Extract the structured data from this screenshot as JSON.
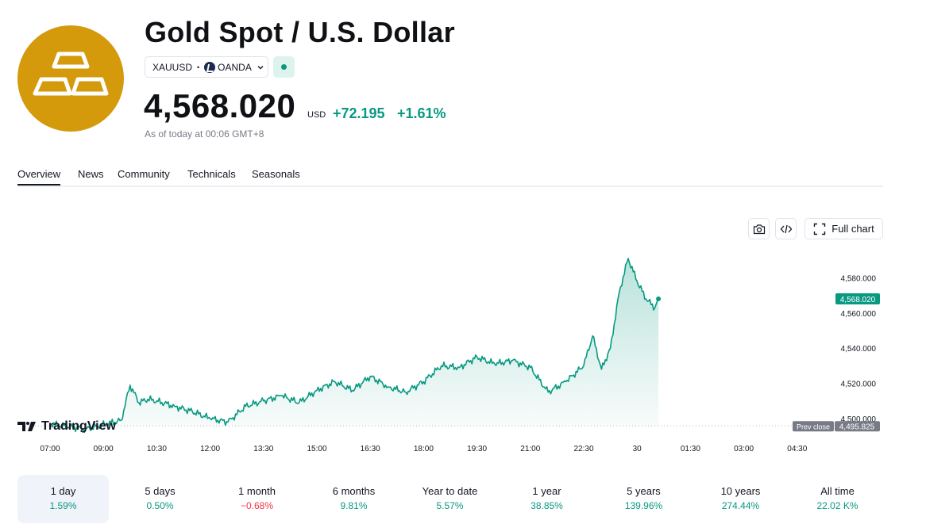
{
  "header": {
    "title": "Gold Spot / U.S. Dollar",
    "symbol": "XAUUSD",
    "exchange": "OANDA",
    "price": "4,568.020",
    "currency": "USD",
    "change": "+72.195",
    "change_pct": "+1.61%",
    "as_of": "As of today at 00:06 GMT+8"
  },
  "tabs": [
    {
      "label": "Overview",
      "active": true
    },
    {
      "label": "News"
    },
    {
      "label": "Community"
    },
    {
      "label": "Technicals"
    },
    {
      "label": "Seasonals"
    }
  ],
  "toolbar": {
    "full_chart_label": "Full chart",
    "camera_icon": "camera-icon",
    "embed_icon": "code-icon",
    "fullscreen_icon": "expand-icon"
  },
  "branding": {
    "tradingview_label": "TradingView"
  },
  "colors": {
    "accent_green": "#089981",
    "negative_red": "#F23645",
    "gold_logo": "#D49A0C"
  },
  "chart_data": {
    "type": "area",
    "x_ticks": [
      "07:00",
      "09:00",
      "10:30",
      "12:00",
      "13:30",
      "15:00",
      "16:30",
      "18:00",
      "19:30",
      "21:00",
      "22:30",
      "30",
      "01:30",
      "03:00",
      "04:30"
    ],
    "y_ticks": [
      "4,500.000",
      "4,520.000",
      "4,540.000",
      "4,560.000",
      "4,580.000"
    ],
    "y_tick_values": [
      4500,
      4520,
      4540,
      4560,
      4580
    ],
    "ylim": [
      4490,
      4590
    ],
    "last_price_label": "4,568.020",
    "last_price": 4568.02,
    "prev_close_label": "Prev close",
    "prev_close_value_label": "4,495.825",
    "prev_close": 4495.825,
    "series": [
      {
        "x": [
          "07:00",
          "08:00",
          "09:00",
          "09:15",
          "09:30",
          "09:45",
          "10:00",
          "10:30",
          "11:00",
          "11:30",
          "12:00",
          "12:30",
          "13:00",
          "13:30",
          "14:00",
          "14:30",
          "15:00",
          "15:30",
          "16:00",
          "16:30",
          "17:00",
          "17:30",
          "18:00",
          "18:30",
          "19:00",
          "19:30",
          "20:00",
          "20:30",
          "21:00",
          "21:30",
          "22:00",
          "22:15",
          "22:30",
          "22:45",
          "23:00",
          "23:15",
          "23:30",
          "23:45",
          "00:00",
          "00:06"
        ],
        "values": [
          4497,
          4494,
          4499,
          4519,
          4509,
          4511,
          4510,
          4507,
          4504,
          4500,
          4498,
          4507,
          4510,
          4513,
          4509,
          4516,
          4521,
          4516,
          4524,
          4518,
          4515,
          4521,
          4530,
          4529,
          4535,
          4531,
          4533,
          4529,
          4515,
          4521,
          4530,
          4547,
          4528,
          4540,
          4572,
          4591,
          4578,
          4568,
          4563,
          4568
        ]
      }
    ]
  },
  "periods": [
    {
      "label": "1 day",
      "value": "1.59%",
      "sign": "pos",
      "active": true
    },
    {
      "label": "5 days",
      "value": "0.50%",
      "sign": "pos"
    },
    {
      "label": "1 month",
      "value": "−0.68%",
      "sign": "neg"
    },
    {
      "label": "6 months",
      "value": "9.81%",
      "sign": "pos"
    },
    {
      "label": "Year to date",
      "value": "5.57%",
      "sign": "pos"
    },
    {
      "label": "1 year",
      "value": "38.85%",
      "sign": "pos"
    },
    {
      "label": "5 years",
      "value": "139.96%",
      "sign": "pos"
    },
    {
      "label": "10 years",
      "value": "274.44%",
      "sign": "pos"
    },
    {
      "label": "All time",
      "value": "22.02 K%",
      "sign": "pos"
    }
  ]
}
